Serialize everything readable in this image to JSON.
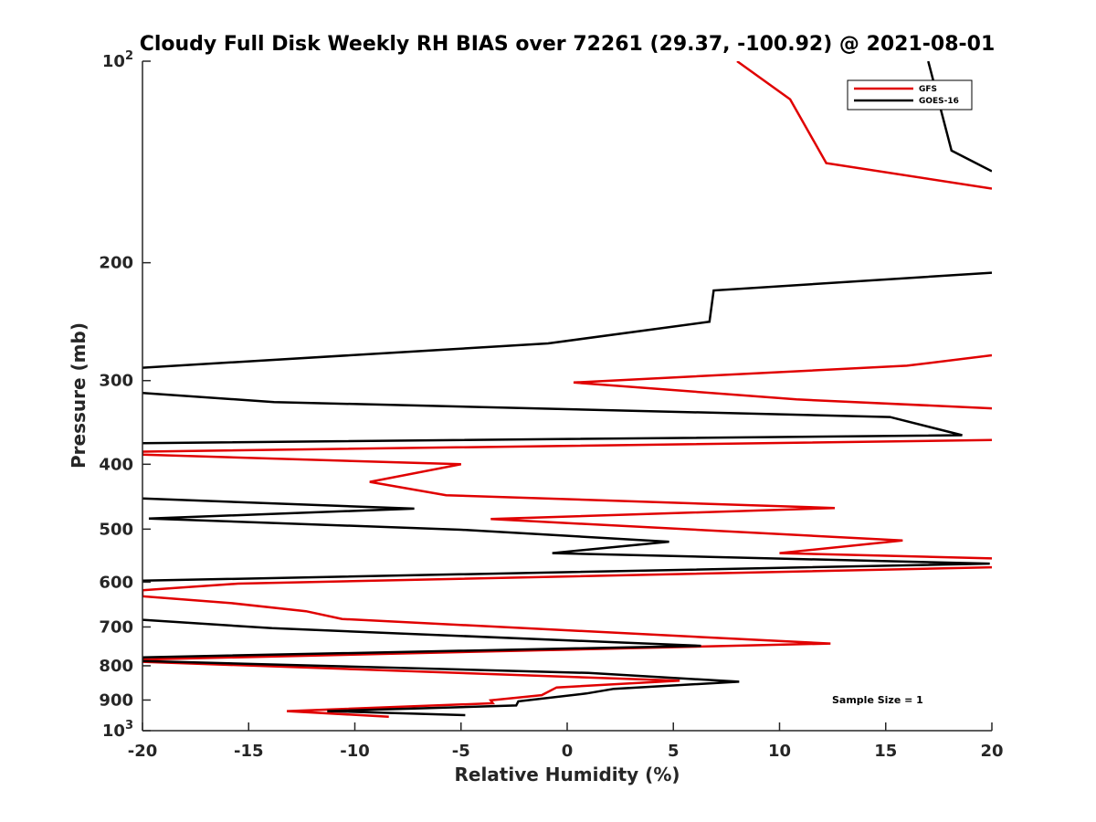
{
  "chart_data": {
    "type": "line",
    "title": "Cloudy Full Disk Weekly RH BIAS over 72261 (29.37, -100.92) @ 2021-08-01",
    "xlabel": "Relative Humidity (%)",
    "ylabel": "Pressure (mb)",
    "xlim": [
      -20,
      20
    ],
    "ylim": [
      100,
      1000
    ],
    "yscale": "log",
    "y_reversed": true,
    "x_ticks": [
      -20,
      -15,
      -10,
      -5,
      0,
      5,
      10,
      15,
      20
    ],
    "x_tick_labels": [
      "-20",
      "-15",
      "-10",
      "-5",
      "0",
      "5",
      "10",
      "15",
      "20"
    ],
    "y_ticks": [
      {
        "value": 100,
        "base": "10",
        "exp": "2"
      },
      {
        "value": 200,
        "label": "200"
      },
      {
        "value": 300,
        "label": "300"
      },
      {
        "value": 400,
        "label": "400"
      },
      {
        "value": 500,
        "label": "500"
      },
      {
        "value": 600,
        "label": "600"
      },
      {
        "value": 700,
        "label": "700"
      },
      {
        "value": 800,
        "label": "800"
      },
      {
        "value": 900,
        "label": "900"
      },
      {
        "value": 1000,
        "base": "10",
        "exp": "3"
      }
    ],
    "legend_position": "top-right",
    "annotation": "Sample Size = 1",
    "series": [
      {
        "name": "GFS",
        "color": "#e00000",
        "points": [
          [
            8,
            100
          ],
          [
            10.5,
            114
          ],
          [
            12.2,
            142
          ],
          [
            20,
            155
          ],
          [
            null,
            null
          ],
          [
            20,
            275
          ],
          [
            16,
            285
          ],
          [
            0.3,
            302
          ],
          [
            10.8,
            320
          ],
          [
            20,
            330
          ],
          [
            null,
            null
          ],
          [
            20,
            368
          ],
          [
            -20,
            383
          ],
          [
            -20,
            387
          ],
          [
            -5,
            400
          ],
          [
            -9.3,
            425
          ],
          [
            -5.7,
            445
          ],
          [
            12.6,
            465
          ],
          [
            -3.6,
            483
          ],
          [
            15.8,
            520
          ],
          [
            10,
            543
          ],
          [
            20,
            553
          ],
          [
            null,
            null
          ],
          [
            20,
            570
          ],
          [
            -15.5,
            603
          ],
          [
            -20,
            617
          ],
          [
            -20,
            630
          ],
          [
            -15.8,
            645
          ],
          [
            -12.3,
            663
          ],
          [
            -10.6,
            681
          ],
          [
            12.4,
            741
          ],
          [
            -20,
            783
          ],
          [
            -20,
            789
          ],
          [
            5.3,
            842
          ],
          [
            -0.5,
            862
          ],
          [
            -1.2,
            885
          ],
          [
            -3.6,
            901
          ],
          [
            -3.5,
            910
          ],
          [
            -13.2,
            935
          ],
          [
            -8.4,
            953
          ]
        ]
      },
      {
        "name": "GOES-16",
        "color": "#000000",
        "points": [
          [
            17,
            100
          ],
          [
            18.1,
            136
          ],
          [
            20,
            146
          ],
          [
            null,
            null
          ],
          [
            20,
            207
          ],
          [
            6.9,
            220
          ],
          [
            6.7,
            245
          ],
          [
            -0.9,
            264
          ],
          [
            -20,
            287
          ],
          [
            null,
            null
          ],
          [
            -20,
            313
          ],
          [
            -13.8,
            323
          ],
          [
            15.2,
            340
          ],
          [
            18.6,
            362
          ],
          [
            -20,
            372
          ],
          [
            null,
            null
          ],
          [
            -20,
            450
          ],
          [
            -7.2,
            466
          ],
          [
            -19.7,
            482
          ],
          [
            -5,
            501
          ],
          [
            4.8,
            522
          ],
          [
            -0.7,
            543
          ],
          [
            19.9,
            563
          ],
          [
            -20,
            597
          ],
          [
            null,
            null
          ],
          [
            -20,
            683
          ],
          [
            -13.9,
            703
          ],
          [
            6.3,
            747
          ],
          [
            -20,
            777
          ],
          [
            -20,
            787
          ],
          [
            1,
            820
          ],
          [
            8.1,
            845
          ],
          [
            2.2,
            866
          ],
          [
            0.9,
            880
          ],
          [
            -2.3,
            904
          ],
          [
            -2.4,
            917
          ],
          [
            -11.3,
            935
          ],
          [
            -4.8,
            948
          ]
        ]
      }
    ]
  },
  "legend": {
    "items": [
      {
        "label": "GFS",
        "color": "#e00000"
      },
      {
        "label": "GOES-16",
        "color": "#000000"
      }
    ]
  }
}
